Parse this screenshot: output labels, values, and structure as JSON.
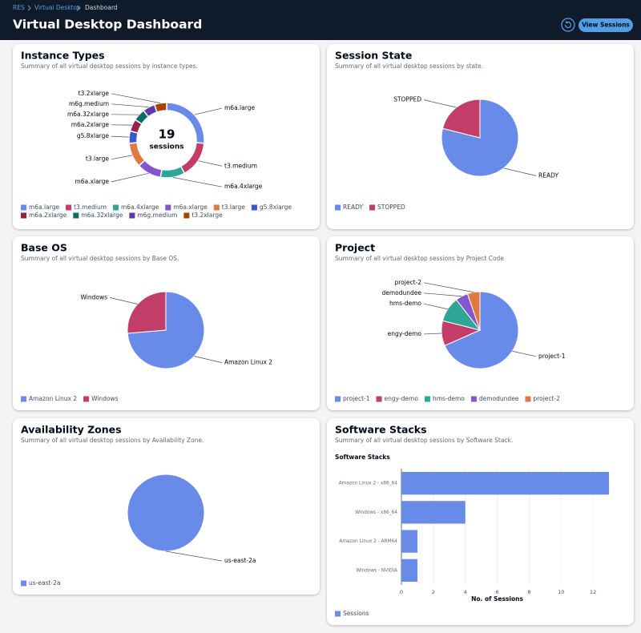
{
  "header": {
    "breadcrumbs": [
      "RES",
      "Virtual Desktop",
      "Dashboard"
    ],
    "title": "Virtual Desktop Dashboard",
    "button": "View Sessions"
  },
  "chart_data": [
    {
      "type": "donut",
      "title": "Instance Types",
      "subtitle": "Summary of all virtual desktop sessions by instance types.",
      "center_value": 19,
      "center_label": "sessions",
      "categories": [
        "m6a.large",
        "t3.medium",
        "m6a.4xlarge",
        "m6a.xlarge",
        "t3.large",
        "g5.8xlarge",
        "m6a.2xlarge",
        "m6a.32xlarge",
        "m6g.medium",
        "t3.2xlarge"
      ],
      "values": [
        5,
        3,
        2,
        2,
        2,
        1,
        1,
        1,
        1,
        1
      ],
      "colors": [
        "#688ae8",
        "#c33d69",
        "#2ea597",
        "#8456ce",
        "#e07941",
        "#3759ce",
        "#962249",
        "#096f64",
        "#6237a7",
        "#a84401"
      ]
    },
    {
      "type": "pie",
      "title": "Session State",
      "subtitle": "Summary of all virtual desktop sessions by state.",
      "categories": [
        "READY",
        "STOPPED"
      ],
      "values": [
        15,
        4
      ],
      "colors": [
        "#688ae8",
        "#c33d69"
      ]
    },
    {
      "type": "pie",
      "title": "Base OS",
      "subtitle": "Summary of all virtual desktop sessions by Base OS.",
      "categories": [
        "Amazon Linux 2",
        "Windows"
      ],
      "values": [
        14,
        5
      ],
      "colors": [
        "#688ae8",
        "#c33d69"
      ]
    },
    {
      "type": "pie",
      "title": "Project",
      "subtitle": "Summary of all virtual desktop sessions by Project Code",
      "categories": [
        "project-1",
        "engy-demo",
        "hms-demo",
        "demodundee",
        "project-2"
      ],
      "values": [
        13,
        2,
        2,
        1,
        1
      ],
      "colors": [
        "#688ae8",
        "#c33d69",
        "#2ea597",
        "#8456ce",
        "#e07941"
      ]
    },
    {
      "type": "pie",
      "title": "Availability Zones",
      "subtitle": "Summary of all virtual desktop sessions by Availability Zone.",
      "categories": [
        "us-east-2a"
      ],
      "values": [
        19
      ],
      "colors": [
        "#688ae8"
      ]
    },
    {
      "type": "bar",
      "orientation": "horizontal",
      "title": "Software Stacks",
      "subtitle": "Summary of all virtual desktop sessions by Software Stack.",
      "chart_title": "Software Stacks",
      "categories": [
        "Amazon Linux 2 - x86_64",
        "Windows - x86_64",
        "Amazon Linux 2 - ARM64",
        "Windows - NVIDIA"
      ],
      "series": [
        {
          "name": "Sessions",
          "color": "#688ae8",
          "values": [
            13,
            4,
            1,
            1
          ]
        }
      ],
      "xlabel": "No. of Sessions",
      "xlim": [
        0,
        14
      ],
      "xticks": [
        0,
        2,
        4,
        6,
        8,
        10,
        12
      ],
      "grid": true
    }
  ]
}
